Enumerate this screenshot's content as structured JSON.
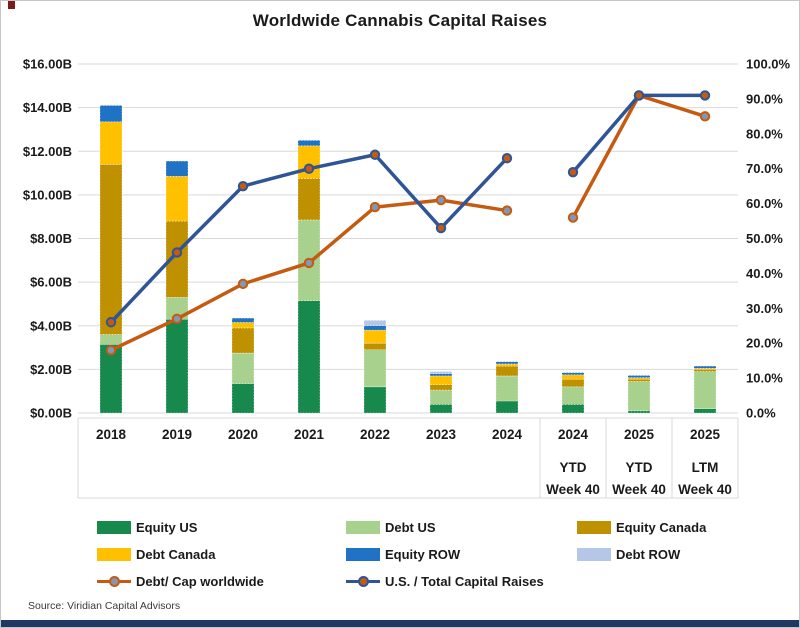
{
  "page": {
    "title": "Worldwide Cannabis Capital Raises",
    "source": "Source: Viridian Capital Advisors"
  },
  "colors": {
    "equity_us": "#17894C",
    "debt_us": "#A9D18E",
    "equity_canada": "#BF9000",
    "debt_canada": "#FFC000",
    "equity_row": "#1F72C4",
    "debt_row": "#B4C7E7",
    "line_debt_cap": "#C55A11",
    "line_us_total": "#2F5597",
    "marker_debt_cap_fill": "#8496B0",
    "marker_us_total_fill": "#C55A11",
    "grid": "#D9D9D9",
    "label_box_border": "#D9D9D9",
    "text": "#1a1a1a",
    "bottom_bar": "#203864",
    "corner_mark": "#7A1C1C"
  },
  "chart_data": {
    "type": "combo (stacked bar + line)",
    "title": "Worldwide Cannabis Capital Raises",
    "categories": [
      [
        "2018"
      ],
      [
        "2019"
      ],
      [
        "2020"
      ],
      [
        "2021"
      ],
      [
        "2022"
      ],
      [
        "2023"
      ],
      [
        "2024"
      ],
      [
        "2024",
        "YTD",
        "Week 40"
      ],
      [
        "2025",
        "YTD",
        "Week 40"
      ],
      [
        "2025",
        "LTM",
        "Week 40"
      ]
    ],
    "left_axis": {
      "unit": "USD billions",
      "min": 0,
      "max": 16,
      "step": 2,
      "ticks": [
        "$16.00B",
        "$14.00B",
        "$12.00B",
        "$10.00B",
        "$8.00B",
        "$6.00B",
        "$4.00B",
        "$2.00B",
        "$0.00B"
      ]
    },
    "right_axis": {
      "unit": "percent",
      "min": 0,
      "max": 100,
      "step": 10,
      "ticks": [
        "100.0%",
        "90.0%",
        "80.0%",
        "70.0%",
        "60.0%",
        "50.0%",
        "40.0%",
        "30.0%",
        "20.0%",
        "10.0%",
        "0.0%"
      ]
    },
    "grid": "horizontal, every $2B",
    "bar_series": [
      {
        "name": "Equity US",
        "color_key": "equity_us",
        "values": [
          3.15,
          4.3,
          1.35,
          5.15,
          1.2,
          0.4,
          0.55,
          0.4,
          0.1,
          0.2
        ]
      },
      {
        "name": "Debt US",
        "color_key": "debt_us",
        "values": [
          0.45,
          1.0,
          1.4,
          3.7,
          1.7,
          0.65,
          1.15,
          0.8,
          1.35,
          1.7
        ]
      },
      {
        "name": "Equity Canada",
        "color_key": "equity_canada",
        "values": [
          7.8,
          3.5,
          1.15,
          1.9,
          0.3,
          0.25,
          0.45,
          0.35,
          0.1,
          0.1
        ]
      },
      {
        "name": "Debt Canada",
        "color_key": "debt_canada",
        "values": [
          1.95,
          2.05,
          0.25,
          1.5,
          0.6,
          0.4,
          0.1,
          0.2,
          0.07,
          0.05
        ]
      },
      {
        "name": "Equity ROW",
        "color_key": "equity_row",
        "values": [
          0.75,
          0.7,
          0.2,
          0.25,
          0.2,
          0.1,
          0.1,
          0.1,
          0.1,
          0.1
        ]
      },
      {
        "name": "Debt ROW",
        "color_key": "debt_row",
        "values": [
          0,
          0,
          0,
          0,
          0.25,
          0.1,
          0,
          0,
          0,
          0
        ]
      }
    ],
    "bar_totals_approx": [
      14.1,
      11.55,
      4.35,
      12.5,
      4.25,
      1.9,
      2.35,
      1.85,
      1.72,
      2.15
    ],
    "line_series": [
      {
        "name": "Debt/ Cap worldwide",
        "color_key": "line_debt_cap",
        "marker_fill_key": "marker_debt_cap_fill",
        "axis": "right",
        "values_pct": [
          18,
          27,
          37,
          43,
          59,
          61,
          58,
          56,
          91,
          85
        ]
      },
      {
        "name": "U.S. / Total Capital Raises",
        "color_key": "line_us_total",
        "marker_fill_key": "marker_us_total_fill",
        "axis": "right",
        "values_pct": [
          26,
          46,
          65,
          70,
          74,
          53,
          73,
          69,
          91,
          91
        ]
      }
    ],
    "line_break_after_index": 6,
    "legend_position": "bottom"
  },
  "legend": {
    "rows": [
      [
        {
          "label": "Equity US",
          "swatch": "equity_us",
          "kind": "box"
        },
        {
          "label": "Debt US",
          "swatch": "debt_us",
          "kind": "box"
        },
        {
          "label": "Equity Canada",
          "swatch": "equity_canada",
          "kind": "box"
        }
      ],
      [
        {
          "label": "Debt Canada",
          "swatch": "debt_canada",
          "kind": "box"
        },
        {
          "label": "Equity ROW",
          "swatch": "equity_row",
          "kind": "box"
        },
        {
          "label": "Debt ROW",
          "swatch": "debt_row",
          "kind": "box"
        }
      ],
      [
        {
          "label": "Debt/ Cap worldwide",
          "swatch": "line_debt_cap",
          "marker": "marker_debt_cap_fill",
          "kind": "line"
        },
        {
          "label": "U.S. / Total Capital Raises",
          "swatch": "line_us_total",
          "marker": "marker_us_total_fill",
          "kind": "line"
        }
      ]
    ]
  }
}
